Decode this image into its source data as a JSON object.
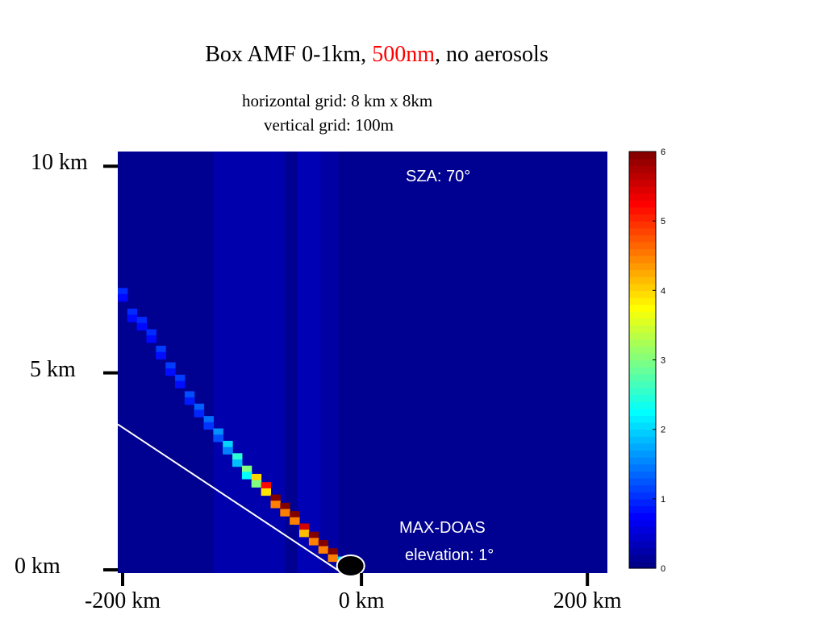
{
  "title": {
    "prefix": "Box AMF 0-1km, ",
    "accent": "500nm",
    "suffix": ", no aerosols"
  },
  "subtitle_lines": [
    "horizontal grid: 8 km x 8km",
    "vertical grid: 100m"
  ],
  "annotations": {
    "sza": "SZA: 70°",
    "instrument": "MAX-DOAS",
    "elevation": "elevation: 1°"
  },
  "colors": {
    "accent": "#ff0000",
    "background": "#00008f",
    "line": "#ffffff"
  },
  "chart_data": {
    "type": "heatmap",
    "title": "Box AMF 0-1km, 500nm, no aerosols",
    "xlabel": "",
    "ylabel": "",
    "xlim": [
      -200,
      210
    ],
    "ylim": [
      0,
      10.2
    ],
    "x_unit": "km",
    "y_unit": "km",
    "x_ticks": [
      {
        "value": -200,
        "label": "-200 km"
      },
      {
        "value": 0,
        "label": "0 km"
      },
      {
        "value": 200,
        "label": "200 km"
      }
    ],
    "y_ticks": [
      {
        "value": 0,
        "label": "0 km"
      },
      {
        "value": 5,
        "label": "5 km"
      },
      {
        "value": 10,
        "label": "10 km"
      }
    ],
    "colorbar": {
      "min": 0,
      "max": 6,
      "ticks": [
        0,
        1,
        2,
        3,
        4,
        5,
        6
      ],
      "colormap": "jet"
    },
    "background_value": 0.1,
    "vertical_bands": [
      {
        "x_range": [
          -120,
          -60
        ],
        "value": 0.4
      },
      {
        "x_range": [
          -50,
          -30
        ],
        "value": 0.5
      },
      {
        "x_range": [
          -30,
          -15
        ],
        "value": 0.3
      }
    ],
    "slant_path_cells": [
      {
        "x": -200,
        "y": 6.6,
        "value": 1.0
      },
      {
        "x": -192,
        "y": 6.1,
        "value": 1.0
      },
      {
        "x": -184,
        "y": 5.9,
        "value": 1.0
      },
      {
        "x": -176,
        "y": 5.6,
        "value": 1.0
      },
      {
        "x": -168,
        "y": 5.2,
        "value": 1.1
      },
      {
        "x": -160,
        "y": 4.8,
        "value": 1.1
      },
      {
        "x": -152,
        "y": 4.5,
        "value": 1.1
      },
      {
        "x": -144,
        "y": 4.1,
        "value": 1.2
      },
      {
        "x": -136,
        "y": 3.8,
        "value": 1.3
      },
      {
        "x": -128,
        "y": 3.5,
        "value": 1.4
      },
      {
        "x": -120,
        "y": 3.2,
        "value": 1.6
      },
      {
        "x": -112,
        "y": 2.9,
        "value": 2.0
      },
      {
        "x": -104,
        "y": 2.6,
        "value": 2.5
      },
      {
        "x": -96,
        "y": 2.3,
        "value": 3.0
      },
      {
        "x": -88,
        "y": 2.1,
        "value": 4.0
      },
      {
        "x": -80,
        "y": 1.9,
        "value": 5.2
      },
      {
        "x": -72,
        "y": 1.6,
        "value": 6.0
      },
      {
        "x": -64,
        "y": 1.4,
        "value": 6.0
      },
      {
        "x": -56,
        "y": 1.2,
        "value": 6.0
      },
      {
        "x": -48,
        "y": 0.9,
        "value": 5.5
      },
      {
        "x": -40,
        "y": 0.7,
        "value": 6.0
      },
      {
        "x": -32,
        "y": 0.5,
        "value": 6.0
      },
      {
        "x": -24,
        "y": 0.3,
        "value": 6.0
      },
      {
        "x": -16,
        "y": 0.1,
        "value": 2.0
      }
    ],
    "line_of_sight": {
      "from": [
        -200,
        3.6
      ],
      "to": [
        -12,
        0
      ]
    },
    "instrument_position": {
      "x": -5,
      "y": 0
    }
  }
}
